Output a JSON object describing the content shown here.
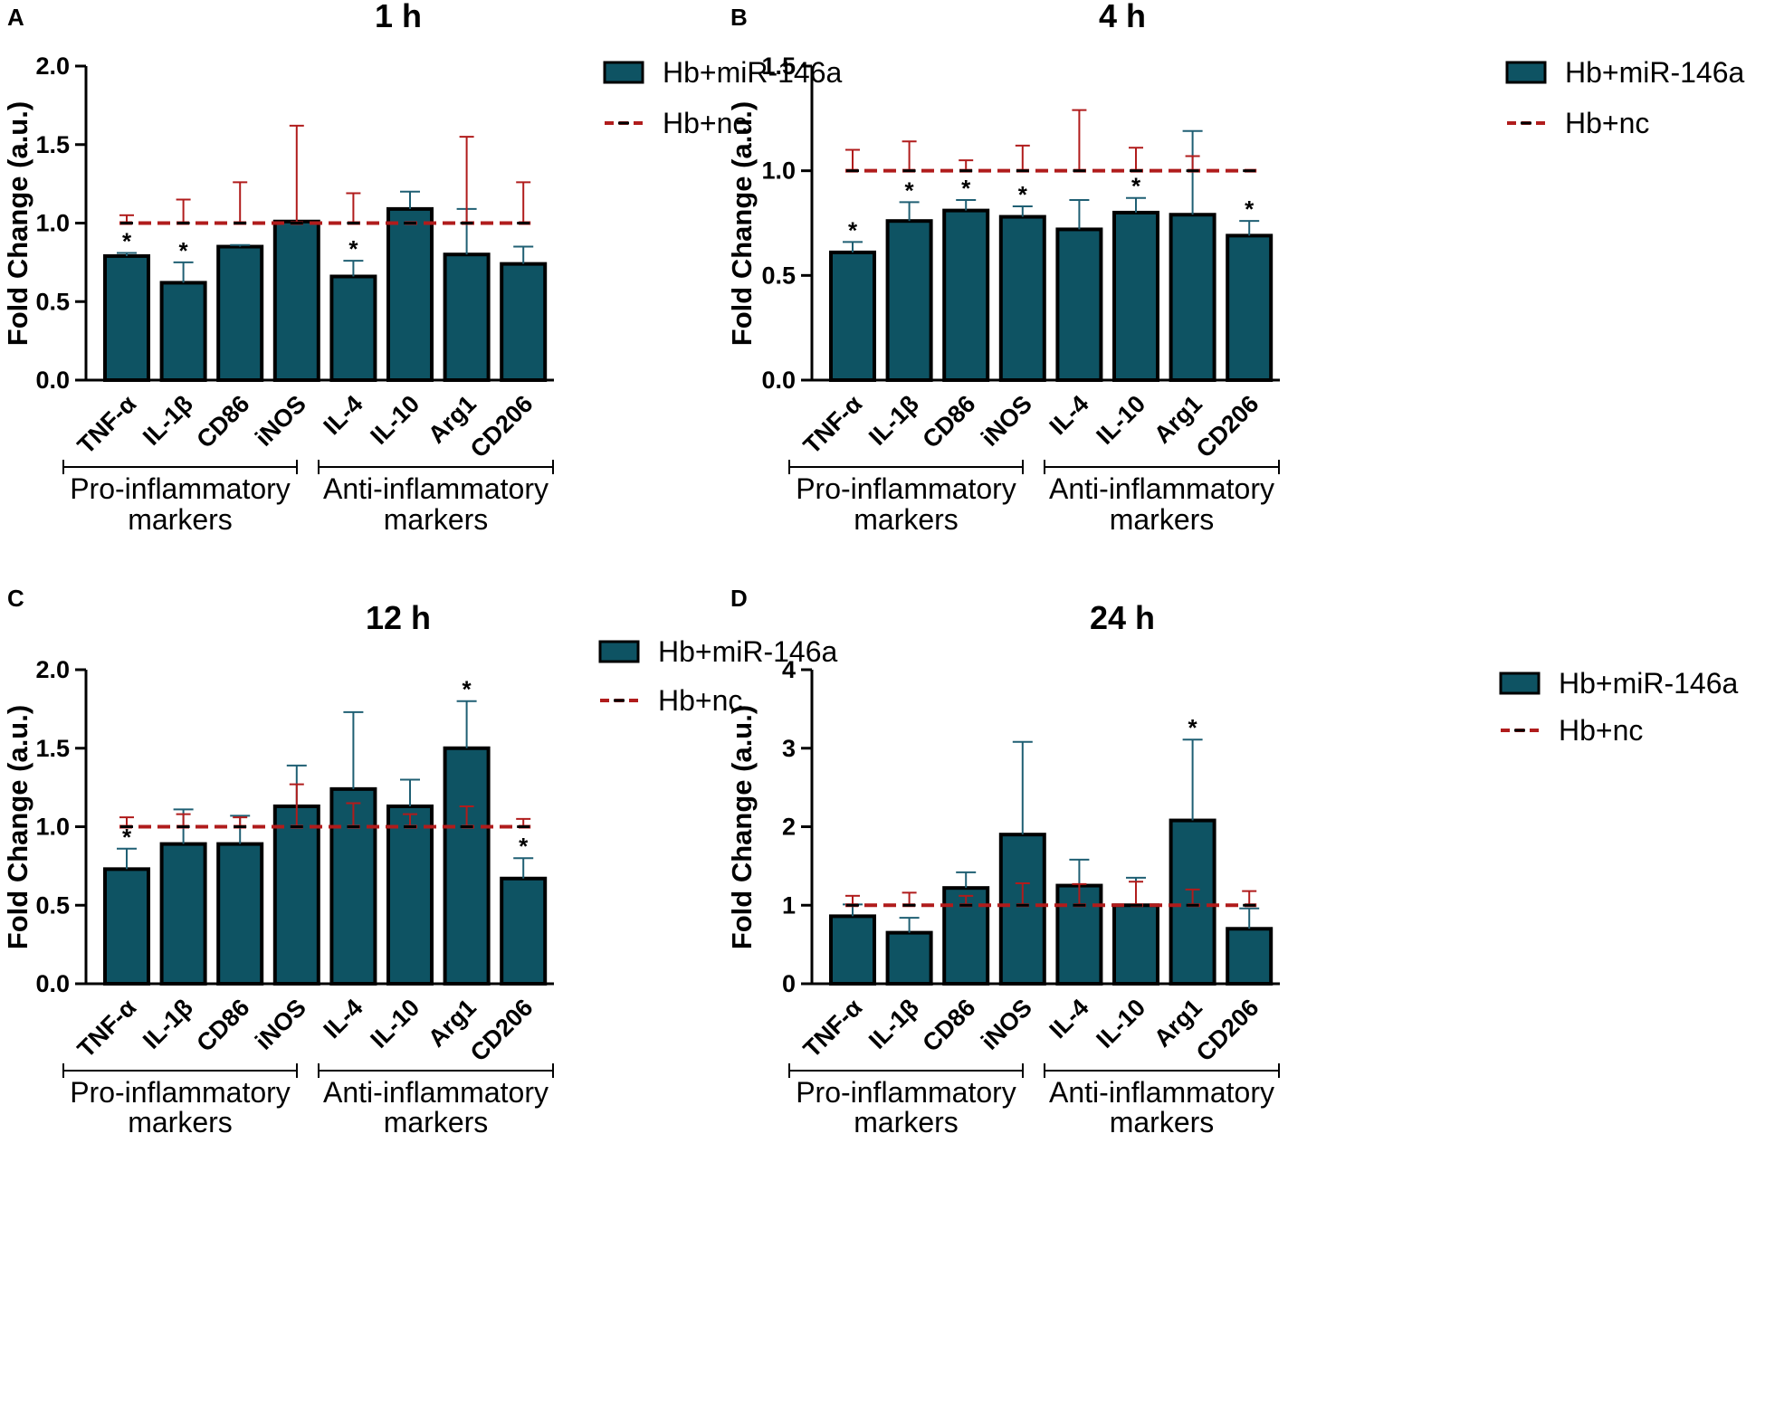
{
  "colors": {
    "bar_fill": "#0e5363",
    "bar_stroke": "#000000",
    "miR_error": "#1f5f73",
    "nc_line": "#b01c1c",
    "nc_error": "#b01c1c"
  },
  "chart_data": [
    {
      "type": "bar",
      "panel": "A",
      "title": "1 h",
      "ylabel": "Fold Change (a.u.)",
      "ylim": [
        0,
        2.0
      ],
      "yticks": [
        "0.0",
        "0.5",
        "1.0",
        "1.5",
        "2.0"
      ],
      "categories": [
        "TNF-α",
        "IL-1β",
        "CD86",
        "iNOS",
        "IL-4",
        "IL-10",
        "Arg1",
        "CD206"
      ],
      "series": [
        {
          "name": "Hb+miR-146a",
          "values": [
            0.79,
            0.62,
            0.85,
            1.01,
            0.66,
            1.09,
            0.8,
            0.74
          ],
          "errors": [
            0.02,
            0.13,
            0.01,
            0.0,
            0.1,
            0.11,
            0.29,
            0.11
          ]
        },
        {
          "name": "Hb+nc",
          "style": "dashed-line",
          "values": [
            1,
            1,
            1,
            1,
            1,
            1,
            1,
            1
          ],
          "errors": [
            0.05,
            0.15,
            0.26,
            0.62,
            0.19,
            0.0,
            0.55,
            0.26
          ]
        }
      ],
      "significance": [
        "*",
        "*",
        "",
        "",
        "*",
        "",
        "",
        ""
      ],
      "groups": [
        {
          "line1": "Pro-inflammatory",
          "line2": "markers"
        },
        {
          "line1": "Anti-inflammatory",
          "line2": "markers"
        }
      ]
    },
    {
      "type": "bar",
      "panel": "B",
      "title": "4 h",
      "ylabel": "Fold Change (a.u.)",
      "ylim": [
        0,
        1.5
      ],
      "yticks": [
        "0.0",
        "0.5",
        "1.0",
        "1.5"
      ],
      "categories": [
        "TNF-α",
        "IL-1β",
        "CD86",
        "iNOS",
        "IL-4",
        "IL-10",
        "Arg1",
        "CD206"
      ],
      "series": [
        {
          "name": "Hb+miR-146a",
          "values": [
            0.61,
            0.76,
            0.81,
            0.78,
            0.72,
            0.8,
            0.79,
            0.69
          ],
          "errors": [
            0.05,
            0.09,
            0.05,
            0.05,
            0.14,
            0.07,
            0.4,
            0.07
          ]
        },
        {
          "name": "Hb+nc",
          "style": "dashed-line",
          "values": [
            1,
            1,
            1,
            1,
            1,
            1,
            1,
            1
          ],
          "errors": [
            0.1,
            0.14,
            0.05,
            0.12,
            0.29,
            0.11,
            0.07,
            0.0
          ]
        }
      ],
      "significance": [
        "*",
        "*",
        "*",
        "*",
        "",
        "*",
        "",
        "*"
      ],
      "groups": [
        {
          "line1": "Pro-inflammatory",
          "line2": "markers"
        },
        {
          "line1": "Anti-inflammatory",
          "line2": "markers"
        }
      ]
    },
    {
      "type": "bar",
      "panel": "C",
      "title": "12 h",
      "ylabel": "Fold Change (a.u.)",
      "ylim": [
        0,
        2.0
      ],
      "yticks": [
        "0.0",
        "0.5",
        "1.0",
        "1.5",
        "2.0"
      ],
      "categories": [
        "TNF-α",
        "IL-1β",
        "CD86",
        "iNOS",
        "IL-4",
        "IL-10",
        "Arg1",
        "CD206"
      ],
      "series": [
        {
          "name": "Hb+miR-146a",
          "values": [
            0.73,
            0.89,
            0.89,
            1.13,
            1.24,
            1.13,
            1.5,
            0.67
          ],
          "errors": [
            0.13,
            0.22,
            0.18,
            0.26,
            0.49,
            0.17,
            0.3,
            0.13
          ]
        },
        {
          "name": "Hb+nc",
          "style": "dashed-line",
          "values": [
            1,
            1,
            1,
            1,
            1,
            1,
            1,
            1
          ],
          "errors": [
            0.06,
            0.08,
            0.06,
            0.27,
            0.15,
            0.08,
            0.13,
            0.05
          ]
        }
      ],
      "significance": [
        "*",
        "",
        "",
        "",
        "",
        "",
        "*",
        "*"
      ],
      "groups": [
        {
          "line1": "Pro-inflammatory",
          "line2": "markers"
        },
        {
          "line1": "Anti-inflammatory",
          "line2": "markers"
        }
      ]
    },
    {
      "type": "bar",
      "panel": "D",
      "title": "24 h",
      "ylabel": "Fold Change (a.u.)",
      "ylim": [
        0,
        4
      ],
      "yticks": [
        "0",
        "1",
        "2",
        "3",
        "4"
      ],
      "categories": [
        "TNF-α",
        "IL-1β",
        "CD86",
        "iNOS",
        "IL-4",
        "IL-10",
        "Arg1",
        "CD206"
      ],
      "series": [
        {
          "name": "Hb+miR-146a",
          "values": [
            0.86,
            0.65,
            1.22,
            1.9,
            1.25,
            1.0,
            2.08,
            0.7
          ],
          "errors": [
            0.15,
            0.19,
            0.2,
            1.18,
            0.33,
            0.35,
            1.03,
            0.26
          ]
        },
        {
          "name": "Hb+nc",
          "style": "dashed-line",
          "values": [
            1,
            1,
            1,
            1,
            1,
            1,
            1,
            1
          ],
          "errors": [
            0.12,
            0.16,
            0.12,
            0.28,
            0.27,
            0.3,
            0.2,
            0.18
          ]
        }
      ],
      "significance": [
        "",
        "",
        "",
        "",
        "",
        "",
        "*",
        ""
      ],
      "groups": [
        {
          "line1": "Pro-inflammatory",
          "line2": "markers"
        },
        {
          "line1": "Anti-inflammatory",
          "line2": "markers"
        }
      ]
    }
  ]
}
